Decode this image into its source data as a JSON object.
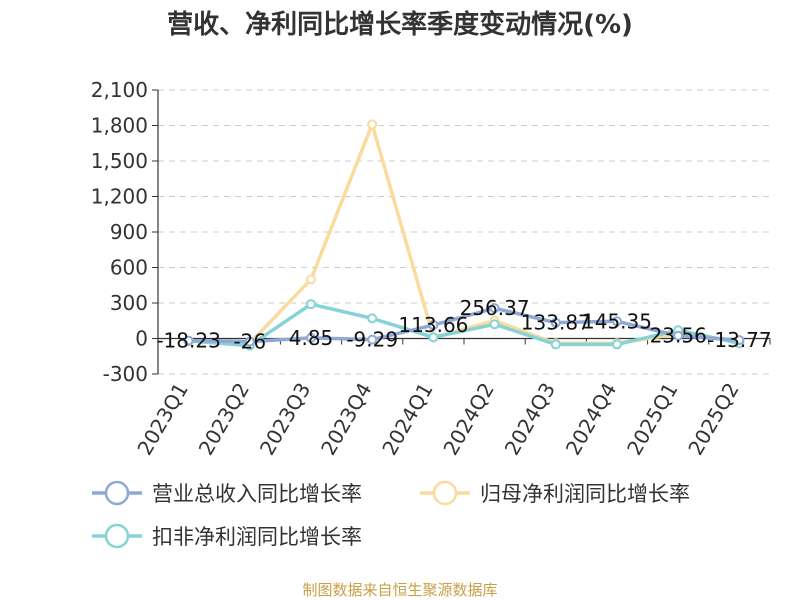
{
  "chart_data": {
    "type": "line",
    "title": "营收、净利同比增长率季度变动情况(%)",
    "x": [
      "2023Q1",
      "2023Q2",
      "2023Q3",
      "2023Q4",
      "2024Q1",
      "2024Q2",
      "2024Q3",
      "2024Q4",
      "2025Q1",
      "2025Q2"
    ],
    "y_ticks": [
      "2,100",
      "1,800",
      "1,500",
      "1,200",
      "900",
      "600",
      "300",
      "0",
      "-300"
    ],
    "ylim": [
      -300,
      2100
    ],
    "grid": true,
    "legend_position": "bottom",
    "series": [
      {
        "name": "营业总收入同比增长率",
        "color": "#8fa8d6",
        "values": [
          -18.23,
          -26,
          4.85,
          -9.29,
          113.66,
          256.37,
          133.87,
          145.35,
          23.56,
          -13.77
        ],
        "labels": [
          "-18.23",
          "-26",
          "4.85",
          "-9.29",
          "113.66",
          "256.37",
          "133.87",
          "145.35",
          "23.56",
          "-13.77"
        ]
      },
      {
        "name": "归母净利润同比增长率",
        "color": "#fadb9e",
        "values": [
          -20,
          -40,
          500,
          1810,
          10,
          150,
          -40,
          -40,
          40,
          -20
        ]
      },
      {
        "name": "扣非净利润同比增长率",
        "color": "#86d3d6",
        "values": [
          -20,
          -60,
          290,
          170,
          10,
          120,
          -50,
          -50,
          70,
          -40
        ]
      }
    ],
    "source": "制图数据来自恒生聚源数据库"
  }
}
